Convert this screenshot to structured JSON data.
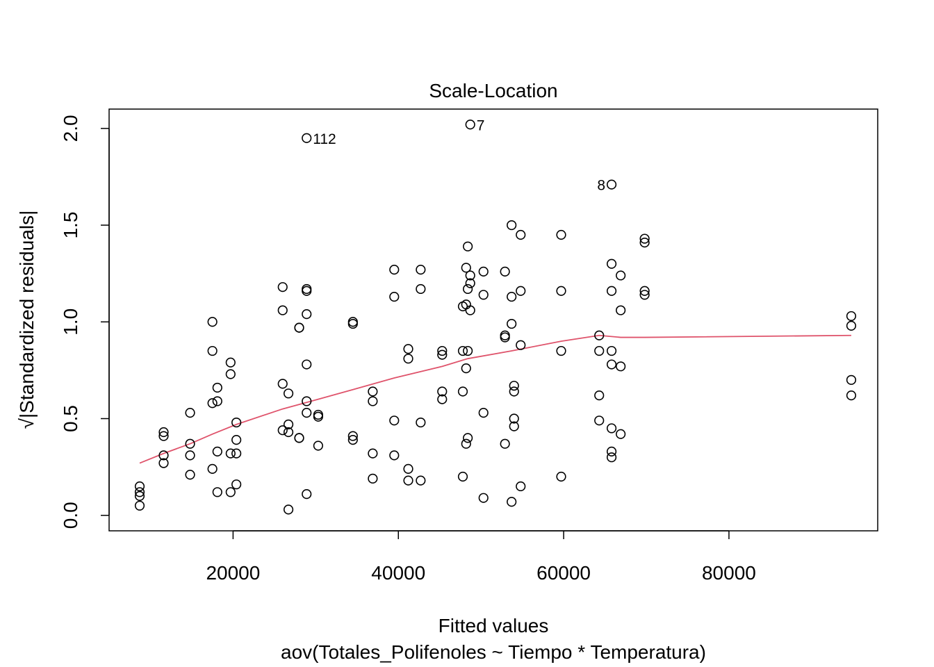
{
  "chart_data": {
    "type": "scatter",
    "title": "Scale-Location",
    "xlabel": "Fitted values",
    "subtitle": "aov(Totales_Polifenoles ~ Tiempo * Temperatura)",
    "ylabel_prefix": "√",
    "ylabel": "|Standardized residuals|",
    "xlim": [
      5000,
      98000
    ],
    "ylim": [
      -0.08,
      2.1
    ],
    "x_ticks": [
      20000,
      40000,
      60000,
      80000
    ],
    "x_tick_labels": [
      "20000",
      "40000",
      "60000",
      "80000"
    ],
    "y_ticks": [
      0.0,
      0.5,
      1.0,
      1.5,
      2.0
    ],
    "y_tick_labels": [
      "0.0",
      "0.5",
      "1.0",
      "1.5",
      "2.0"
    ],
    "grid": false,
    "points_color": "#000000",
    "smooth_color": "#DF536B",
    "points": [
      [
        8700,
        0.15
      ],
      [
        8700,
        0.12
      ],
      [
        8700,
        0.1
      ],
      [
        8700,
        0.05
      ],
      [
        11600,
        0.43
      ],
      [
        11600,
        0.41
      ],
      [
        11600,
        0.31
      ],
      [
        11600,
        0.27
      ],
      [
        14800,
        0.53
      ],
      [
        14800,
        0.37
      ],
      [
        14800,
        0.31
      ],
      [
        14800,
        0.21
      ],
      [
        17500,
        1.0
      ],
      [
        17500,
        0.85
      ],
      [
        17500,
        0.58
      ],
      [
        17500,
        0.24
      ],
      [
        18100,
        0.66
      ],
      [
        18100,
        0.59
      ],
      [
        18100,
        0.33
      ],
      [
        18100,
        0.12
      ],
      [
        19700,
        0.79
      ],
      [
        19700,
        0.73
      ],
      [
        19700,
        0.32
      ],
      [
        19700,
        0.12
      ],
      [
        20400,
        0.48
      ],
      [
        20400,
        0.39
      ],
      [
        20400,
        0.32
      ],
      [
        20400,
        0.16
      ],
      [
        26000,
        1.18
      ],
      [
        26000,
        1.06
      ],
      [
        26000,
        0.68
      ],
      [
        26000,
        0.44
      ],
      [
        26700,
        0.63
      ],
      [
        26700,
        0.47
      ],
      [
        26700,
        0.43
      ],
      [
        26700,
        0.03
      ],
      [
        28000,
        0.97
      ],
      [
        28000,
        0.97
      ],
      [
        28000,
        0.4
      ],
      [
        28000,
        0.4
      ],
      [
        28900,
        1.95
      ],
      [
        28900,
        1.17
      ],
      [
        28900,
        1.16
      ],
      [
        28900,
        1.04
      ],
      [
        28900,
        0.78
      ],
      [
        28900,
        0.59
      ],
      [
        28900,
        0.53
      ],
      [
        28900,
        0.11
      ],
      [
        30300,
        0.52
      ],
      [
        30300,
        0.51
      ],
      [
        30300,
        0.36
      ],
      [
        34500,
        1.0
      ],
      [
        34500,
        0.99
      ],
      [
        34500,
        0.41
      ],
      [
        34500,
        0.39
      ],
      [
        36900,
        0.64
      ],
      [
        36900,
        0.59
      ],
      [
        36900,
        0.32
      ],
      [
        36900,
        0.19
      ],
      [
        39500,
        1.27
      ],
      [
        39500,
        1.13
      ],
      [
        39500,
        0.49
      ],
      [
        39500,
        0.31
      ],
      [
        41200,
        0.86
      ],
      [
        41200,
        0.81
      ],
      [
        41200,
        0.24
      ],
      [
        41200,
        0.18
      ],
      [
        42700,
        1.27
      ],
      [
        42700,
        1.17
      ],
      [
        42700,
        0.48
      ],
      [
        42700,
        0.18
      ],
      [
        45300,
        0.85
      ],
      [
        45300,
        0.83
      ],
      [
        45300,
        0.64
      ],
      [
        45300,
        0.6
      ],
      [
        47800,
        1.08
      ],
      [
        47800,
        0.85
      ],
      [
        47800,
        0.64
      ],
      [
        47800,
        0.2
      ],
      [
        48200,
        1.28
      ],
      [
        48200,
        1.09
      ],
      [
        48200,
        0.76
      ],
      [
        48200,
        0.37
      ],
      [
        48400,
        1.39
      ],
      [
        48400,
        1.17
      ],
      [
        48400,
        0.85
      ],
      [
        48400,
        0.4
      ],
      [
        48700,
        2.02
      ],
      [
        48700,
        1.24
      ],
      [
        48700,
        1.2
      ],
      [
        48700,
        1.06
      ],
      [
        50300,
        1.26
      ],
      [
        50300,
        1.14
      ],
      [
        50300,
        0.53
      ],
      [
        50300,
        0.09
      ],
      [
        52900,
        1.26
      ],
      [
        52900,
        0.93
      ],
      [
        52900,
        0.92
      ],
      [
        52900,
        0.37
      ],
      [
        53700,
        1.5
      ],
      [
        53700,
        1.13
      ],
      [
        53700,
        0.99
      ],
      [
        53700,
        0.07
      ],
      [
        54000,
        0.67
      ],
      [
        54000,
        0.64
      ],
      [
        54000,
        0.5
      ],
      [
        54000,
        0.46
      ],
      [
        54800,
        1.45
      ],
      [
        54800,
        1.16
      ],
      [
        54800,
        0.88
      ],
      [
        54800,
        0.15
      ],
      [
        59700,
        1.45
      ],
      [
        59700,
        1.16
      ],
      [
        59700,
        0.85
      ],
      [
        59700,
        0.2
      ],
      [
        64300,
        0.93
      ],
      [
        64300,
        0.85
      ],
      [
        64300,
        0.62
      ],
      [
        64300,
        0.49
      ],
      [
        65800,
        1.71
      ],
      [
        65800,
        1.3
      ],
      [
        65800,
        1.16
      ],
      [
        65800,
        0.85
      ],
      [
        65800,
        0.78
      ],
      [
        65800,
        0.45
      ],
      [
        65800,
        0.33
      ],
      [
        65800,
        0.3
      ],
      [
        66900,
        1.24
      ],
      [
        66900,
        1.06
      ],
      [
        66900,
        0.77
      ],
      [
        66900,
        0.42
      ],
      [
        69800,
        1.43
      ],
      [
        69800,
        1.41
      ],
      [
        69800,
        1.16
      ],
      [
        69800,
        1.14
      ],
      [
        94800,
        1.03
      ],
      [
        94800,
        0.98
      ],
      [
        94800,
        0.7
      ],
      [
        94800,
        0.62
      ]
    ],
    "smooth_line": [
      [
        8700,
        0.27
      ],
      [
        11600,
        0.32
      ],
      [
        14800,
        0.37
      ],
      [
        17500,
        0.42
      ],
      [
        20400,
        0.47
      ],
      [
        26000,
        0.55
      ],
      [
        30300,
        0.6
      ],
      [
        34500,
        0.65
      ],
      [
        39500,
        0.71
      ],
      [
        45300,
        0.77
      ],
      [
        48400,
        0.81
      ],
      [
        53700,
        0.85
      ],
      [
        59700,
        0.9
      ],
      [
        64300,
        0.93
      ],
      [
        66900,
        0.92
      ],
      [
        69800,
        0.92
      ],
      [
        94800,
        0.93
      ]
    ],
    "point_labels": [
      {
        "text": "112",
        "x": 28900,
        "y": 1.95,
        "side": "right"
      },
      {
        "text": "7",
        "x": 48700,
        "y": 2.02,
        "side": "right"
      },
      {
        "text": "8",
        "x": 65800,
        "y": 1.71,
        "side": "left"
      }
    ]
  }
}
